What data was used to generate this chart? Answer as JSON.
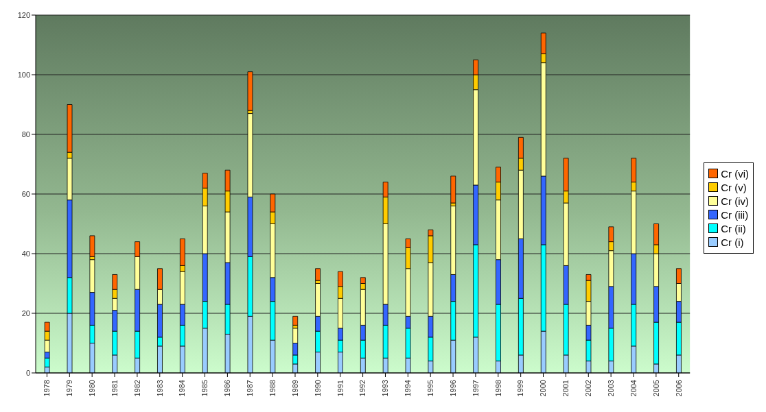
{
  "chart_data": {
    "type": "bar",
    "stacked": true,
    "categories": [
      "1978",
      "1979",
      "1980",
      "1981",
      "1982",
      "1983",
      "1984",
      "1985",
      "1986",
      "1987",
      "1988",
      "1989",
      "1990",
      "1991",
      "1992",
      "1993",
      "1994",
      "1995",
      "1996",
      "1997",
      "1998",
      "1999",
      "2000",
      "2001",
      "2002",
      "2003",
      "2004",
      "2005",
      "2006"
    ],
    "series": [
      {
        "name": "Cr (i)",
        "color": "#99ccff",
        "values": [
          2,
          20,
          10,
          6,
          5,
          9,
          9,
          15,
          13,
          19,
          11,
          3,
          7,
          7,
          5,
          5,
          5,
          4,
          11,
          12,
          4,
          6,
          14,
          6,
          4,
          4,
          9,
          3,
          6
        ]
      },
      {
        "name": "Cr (ii)",
        "color": "#00ffff",
        "values": [
          3,
          12,
          6,
          8,
          9,
          3,
          7,
          9,
          10,
          20,
          13,
          3,
          7,
          4,
          6,
          11,
          10,
          8,
          13,
          31,
          19,
          19,
          29,
          17,
          7,
          11,
          14,
          14,
          11
        ]
      },
      {
        "name": "Cr (iii)",
        "color": "#3366ff",
        "values": [
          2,
          26,
          11,
          7,
          14,
          11,
          7,
          16,
          14,
          20,
          8,
          4,
          5,
          4,
          5,
          7,
          4,
          7,
          9,
          20,
          15,
          20,
          23,
          13,
          5,
          14,
          17,
          12,
          7
        ]
      },
      {
        "name": "Cr (iv)",
        "color": "#ffff99",
        "values": [
          4,
          14,
          11,
          4,
          11,
          5,
          11,
          16,
          17,
          28,
          18,
          5,
          11,
          10,
          12,
          27,
          16,
          18,
          23,
          32,
          20,
          23,
          38,
          21,
          8,
          12,
          21,
          11,
          6
        ]
      },
      {
        "name": "Cr (v)",
        "color": "#ffcc00",
        "values": [
          3,
          2,
          1,
          3,
          0,
          0,
          2,
          6,
          7,
          1,
          4,
          1,
          1,
          4,
          2,
          9,
          7,
          9,
          1,
          5,
          6,
          4,
          3,
          4,
          7,
          3,
          3,
          3,
          0
        ]
      },
      {
        "name": "Cr (vi)",
        "color": "#ff6600",
        "values": [
          3,
          16,
          7,
          5,
          5,
          7,
          9,
          5,
          7,
          13,
          6,
          3,
          4,
          5,
          2,
          5,
          3,
          2,
          9,
          5,
          5,
          7,
          7,
          11,
          2,
          5,
          8,
          7,
          5
        ]
      }
    ],
    "ylim": [
      0,
      120
    ],
    "yticks": [
      0,
      20,
      40,
      60,
      80,
      100,
      120
    ],
    "grid": "y",
    "legend": "right"
  }
}
